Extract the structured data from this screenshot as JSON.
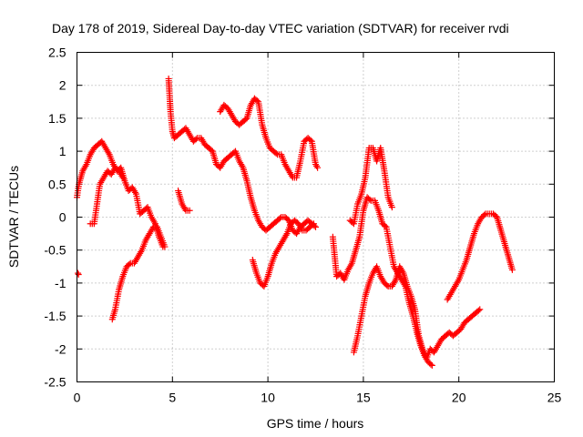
{
  "chart_data": {
    "type": "scatter",
    "title": "Day 178 of 2019, Sidereal Day-to-day VTEC variation (SDTVAR) for receiver rvdi",
    "xlabel": "GPS time / hours",
    "ylabel": "SDTVAR / TECUs",
    "xlim": [
      0,
      25
    ],
    "ylim": [
      -2.5,
      2.5
    ],
    "xticks": [
      "0",
      "5",
      "10",
      "15",
      "20",
      "25"
    ],
    "yticks": [
      "2.5",
      "2",
      "1.5",
      "1",
      "0.5",
      "0",
      "-0.5",
      "-1",
      "-1.5",
      "-2",
      "-2.5"
    ],
    "grid": true,
    "marker": "plus",
    "color": "#ff0000",
    "series": [
      {
        "x": [
          0.0,
          0.1,
          0.3,
          0.5,
          0.7,
          0.9,
          1.1,
          1.3,
          1.5,
          1.7,
          1.9,
          2.1,
          2.3,
          2.5,
          2.7,
          2.9,
          3.1,
          3.3,
          3.5,
          3.7,
          3.9,
          4.1,
          4.3,
          4.5
        ],
        "y": [
          0.3,
          0.5,
          0.7,
          0.8,
          0.95,
          1.05,
          1.1,
          1.15,
          1.05,
          0.95,
          0.8,
          0.7,
          0.75,
          0.55,
          0.4,
          0.45,
          0.35,
          0.05,
          0.1,
          0.15,
          0.0,
          -0.1,
          -0.3,
          -0.45
        ]
      },
      {
        "x": [
          0.05,
          0.08
        ],
        "y": [
          -0.85,
          -0.87
        ]
      },
      {
        "x": [
          0.7,
          0.9,
          1.1,
          1.2,
          1.4,
          1.6,
          1.8,
          2.0,
          2.2,
          2.4
        ],
        "y": [
          -0.1,
          -0.1,
          0.3,
          0.5,
          0.6,
          0.7,
          0.65,
          0.75,
          0.7,
          0.6
        ]
      },
      {
        "x": [
          1.85,
          2.0,
          2.2,
          2.4,
          2.6,
          2.8,
          3.0,
          3.2,
          3.4,
          3.6,
          3.8,
          4.0,
          4.2,
          4.4,
          4.6
        ],
        "y": [
          -1.55,
          -1.4,
          -1.1,
          -0.9,
          -0.75,
          -0.7,
          -0.7,
          -0.6,
          -0.5,
          -0.35,
          -0.25,
          -0.15,
          -0.15,
          -0.3,
          -0.45
        ]
      },
      {
        "x": [
          4.8,
          4.85,
          4.9,
          5.0,
          5.1,
          5.3,
          5.5,
          5.7,
          5.9,
          6.1,
          6.3,
          6.5,
          6.7,
          6.9,
          7.1,
          7.3,
          7.5,
          7.7,
          7.9,
          8.1,
          8.3,
          8.5,
          8.7,
          8.9,
          9.1,
          9.3,
          9.5,
          9.7,
          9.9,
          10.1,
          10.3,
          10.5,
          10.7,
          10.9,
          11.1,
          11.3,
          11.5,
          11.7,
          11.9,
          12.1,
          12.3,
          12.5
        ],
        "y": [
          2.1,
          1.85,
          1.6,
          1.3,
          1.2,
          1.25,
          1.3,
          1.35,
          1.25,
          1.15,
          1.2,
          1.2,
          1.1,
          1.05,
          1.0,
          0.8,
          0.75,
          0.85,
          0.9,
          0.95,
          1.0,
          0.85,
          0.75,
          0.55,
          0.3,
          0.1,
          -0.05,
          -0.15,
          -0.2,
          -0.15,
          -0.1,
          -0.05,
          0.0,
          0.0,
          -0.05,
          -0.2,
          -0.25,
          -0.15,
          -0.1,
          -0.05,
          -0.1,
          -0.15
        ]
      },
      {
        "x": [
          5.3,
          5.5,
          5.7,
          5.9
        ],
        "y": [
          0.4,
          0.2,
          0.1,
          0.1
        ]
      },
      {
        "x": [
          7.5,
          7.7,
          7.9,
          8.1,
          8.3,
          8.5,
          8.7,
          8.9,
          9.1,
          9.3,
          9.5,
          9.7,
          9.9,
          10.1,
          10.3,
          10.5,
          10.7,
          10.9,
          11.1,
          11.3,
          11.5,
          11.7,
          11.9,
          12.1,
          12.3,
          12.5,
          12.6
        ],
        "y": [
          1.6,
          1.7,
          1.65,
          1.55,
          1.45,
          1.4,
          1.45,
          1.5,
          1.7,
          1.8,
          1.75,
          1.4,
          1.2,
          1.05,
          1.0,
          0.95,
          0.95,
          0.8,
          0.7,
          0.6,
          0.6,
          0.85,
          1.15,
          1.2,
          1.15,
          0.8,
          0.75
        ]
      },
      {
        "x": [
          9.2,
          9.4,
          9.6,
          9.8,
          10.0,
          10.2,
          10.4,
          10.6,
          10.8,
          11.0,
          11.2,
          11.4,
          11.6,
          11.8,
          12.0,
          12.2,
          12.4
        ],
        "y": [
          -0.65,
          -0.85,
          -1.0,
          -1.05,
          -0.9,
          -0.7,
          -0.55,
          -0.45,
          -0.35,
          -0.25,
          -0.1,
          -0.05,
          -0.1,
          -0.2,
          -0.2,
          -0.15,
          -0.1
        ]
      },
      {
        "x": [
          13.4,
          13.6,
          13.8,
          14.0,
          14.2,
          14.4,
          14.6,
          14.8,
          15.0,
          15.2,
          15.4,
          15.6,
          15.8,
          16.0,
          16.2,
          16.4,
          16.6,
          16.8,
          17.0,
          17.2,
          17.4,
          17.6,
          17.8,
          18.0,
          18.2,
          18.4,
          18.6
        ],
        "y": [
          -0.3,
          -0.9,
          -0.85,
          -0.95,
          -0.8,
          -0.7,
          -0.5,
          -0.3,
          0.1,
          0.3,
          0.25,
          0.25,
          0.1,
          -0.1,
          -0.15,
          -0.45,
          -0.75,
          -0.85,
          -0.95,
          -1.05,
          -1.3,
          -1.5,
          -1.75,
          -1.95,
          -2.1,
          -2.2,
          -2.25
        ]
      },
      {
        "x": [
          14.3,
          14.5,
          14.7,
          14.9,
          15.1,
          15.3,
          15.5,
          15.7,
          15.9,
          16.1,
          16.3,
          16.5
        ],
        "y": [
          -0.05,
          -0.1,
          0.2,
          0.35,
          0.6,
          1.05,
          1.05,
          0.85,
          1.05,
          0.7,
          0.3,
          0.15
        ]
      },
      {
        "x": [
          14.5,
          14.7,
          14.9,
          15.1,
          15.3,
          15.5,
          15.7,
          15.9,
          16.1,
          16.3,
          16.5,
          16.7,
          16.9,
          17.1,
          17.3,
          17.5,
          17.7,
          17.9,
          18.1,
          18.3,
          18.5,
          18.7,
          18.9,
          19.1,
          19.3,
          19.5,
          19.7,
          19.9,
          20.1,
          20.3,
          20.5,
          20.7,
          20.9,
          21.1
        ],
        "y": [
          -2.05,
          -1.8,
          -1.5,
          -1.2,
          -1.0,
          -0.85,
          -0.75,
          -0.9,
          -1.0,
          -1.05,
          -1.05,
          -0.95,
          -0.75,
          -0.85,
          -1.05,
          -1.2,
          -1.4,
          -1.8,
          -2.0,
          -2.15,
          -2.0,
          -2.05,
          -1.95,
          -1.85,
          -1.8,
          -1.75,
          -1.8,
          -1.75,
          -1.7,
          -1.6,
          -1.55,
          -1.5,
          -1.45,
          -1.4
        ]
      },
      {
        "x": [
          19.4,
          19.6,
          19.8,
          20.0,
          20.2,
          20.4,
          20.6,
          20.8,
          21.0,
          21.2,
          21.4,
          21.6,
          21.8,
          22.0,
          22.2,
          22.4,
          22.6,
          22.8
        ],
        "y": [
          -1.25,
          -1.15,
          -1.05,
          -0.95,
          -0.8,
          -0.65,
          -0.45,
          -0.25,
          -0.1,
          0.0,
          0.05,
          0.05,
          0.05,
          0.0,
          -0.2,
          -0.4,
          -0.6,
          -0.8
        ]
      }
    ]
  }
}
